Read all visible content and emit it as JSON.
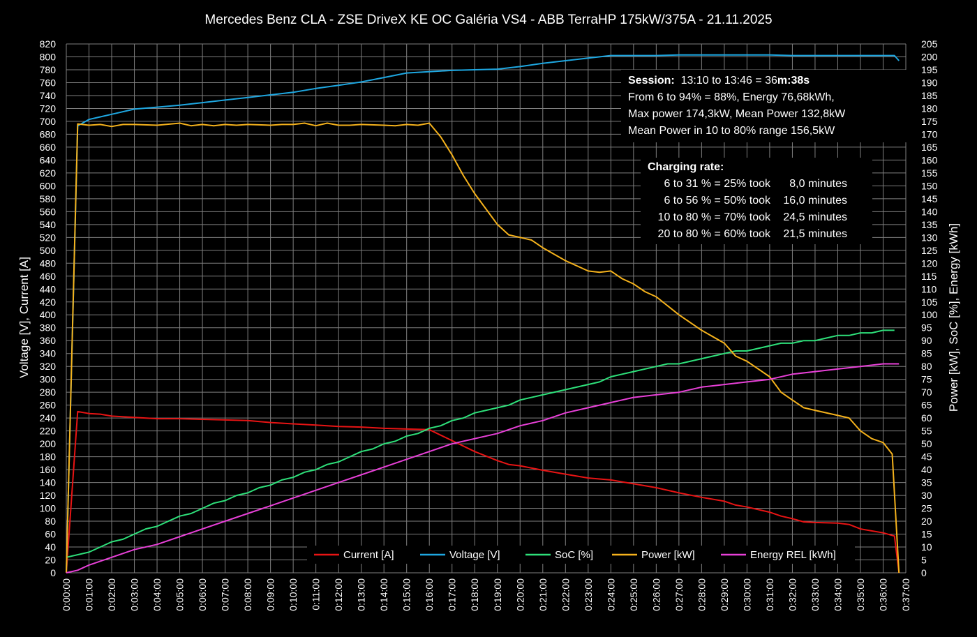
{
  "chart_data": {
    "type": "line",
    "title": "Mercedes Benz CLA - ZSE DriveX KE OC Galéria VS4 - ABB TerraHP 175kW/375A - 21.11.2025",
    "ylabel_left": "Voltage [V], Current [A]",
    "ylabel_right": "Power [kW], SoC [%], Energy [kWh]",
    "xlabel": "",
    "xlim_minutes": [
      0,
      37
    ],
    "ylim_left": [
      0,
      820
    ],
    "ylim_right": [
      0,
      205
    ],
    "grid": true,
    "legend_position": "bottom-center",
    "x_tick_labels": [
      "0:00:00",
      "0:01:00",
      "0:02:00",
      "0:03:00",
      "0:04:00",
      "0:05:00",
      "0:06:00",
      "0:07:00",
      "0:08:00",
      "0:09:00",
      "0:10:00",
      "0:11:00",
      "0:12:00",
      "0:13:00",
      "0:14:00",
      "0:15:00",
      "0:16:00",
      "0:17:00",
      "0:18:00",
      "0:19:00",
      "0:20:00",
      "0:21:00",
      "0:22:00",
      "0:23:00",
      "0:24:00",
      "0:25:00",
      "0:26:00",
      "0:27:00",
      "0:28:00",
      "0:29:00",
      "0:30:00",
      "0:31:00",
      "0:32:00",
      "0:33:00",
      "0:34:00",
      "0:35:00",
      "0:36:00",
      "0:37:00"
    ],
    "y_left_ticks": [
      0,
      20,
      40,
      60,
      80,
      100,
      120,
      140,
      160,
      180,
      200,
      220,
      240,
      260,
      280,
      300,
      320,
      340,
      360,
      380,
      400,
      420,
      440,
      460,
      480,
      500,
      520,
      540,
      560,
      580,
      600,
      620,
      640,
      660,
      680,
      700,
      720,
      740,
      760,
      780,
      800,
      820
    ],
    "y_right_ticks": [
      0,
      5,
      10,
      15,
      20,
      25,
      30,
      35,
      40,
      45,
      50,
      55,
      60,
      65,
      70,
      75,
      80,
      85,
      90,
      95,
      100,
      105,
      110,
      115,
      120,
      125,
      130,
      135,
      140,
      145,
      150,
      155,
      160,
      165,
      170,
      175,
      180,
      185,
      190,
      195,
      200,
      205
    ],
    "series": [
      {
        "name": "Current [A]",
        "axis": "left",
        "color": "#e81414",
        "x": [
          0,
          0.5,
          1,
          1.5,
          2,
          3,
          4,
          5,
          6,
          7,
          8,
          9,
          10,
          11,
          12,
          13,
          14,
          15,
          16,
          17,
          18,
          19,
          19.5,
          20,
          21,
          22,
          23,
          24,
          25,
          26,
          27,
          28,
          29,
          29.5,
          30,
          31,
          31.5,
          32,
          32.5,
          33,
          34,
          34.5,
          35,
          36,
          36.5,
          36.7
        ],
        "values": [
          0,
          250,
          247,
          246,
          243,
          241,
          239,
          239,
          238,
          237,
          236,
          233,
          231,
          229,
          227,
          226,
          224,
          223,
          222,
          205,
          188,
          174,
          168,
          166,
          159,
          153,
          147,
          144,
          138,
          132,
          124,
          117,
          111,
          105,
          102,
          94,
          88,
          84,
          79,
          78,
          77,
          75,
          68,
          62,
          57,
          0
        ]
      },
      {
        "name": "Voltage [V]",
        "axis": "left",
        "color": "#1ea7e1",
        "x": [
          0,
          0.5,
          1,
          1.5,
          2,
          3,
          4,
          5,
          6,
          7,
          8,
          9,
          10,
          11,
          12,
          13,
          14,
          15,
          16,
          17,
          18,
          19,
          20,
          21,
          22,
          23,
          24,
          25,
          26,
          27,
          28,
          29,
          30,
          31,
          32,
          33,
          34,
          35,
          36,
          36.5,
          36.7
        ],
        "values": [
          0,
          693,
          703,
          707,
          711,
          719,
          722,
          725,
          729,
          733,
          737,
          741,
          745,
          751,
          756,
          761,
          768,
          775,
          777,
          779,
          780,
          781,
          785,
          790,
          794,
          798,
          802,
          802,
          802,
          803,
          803,
          803,
          803,
          803,
          802,
          802,
          802,
          802,
          802,
          802,
          794
        ]
      },
      {
        "name": "SoC [%]",
        "axis": "right",
        "color": "#2ee07a",
        "x": [
          0,
          1,
          1.5,
          2,
          2.5,
          3,
          3.5,
          4,
          4.5,
          5,
          5.5,
          6,
          6.5,
          7,
          7.5,
          8,
          8.5,
          9,
          9.5,
          10,
          10.5,
          11,
          11.5,
          12,
          12.5,
          13,
          13.5,
          14,
          14.5,
          15,
          15.5,
          16,
          16.5,
          17,
          17.5,
          18,
          18.5,
          19,
          19.5,
          20,
          21,
          22,
          23,
          23.5,
          24,
          25,
          26,
          26.5,
          27,
          28,
          29,
          29.5,
          30,
          31,
          31.5,
          32,
          32.5,
          33,
          33.5,
          34,
          34.5,
          35,
          35.5,
          36,
          36.5
        ],
        "values": [
          6,
          8,
          10,
          12,
          13,
          15,
          17,
          18,
          20,
          22,
          23,
          25,
          27,
          28,
          30,
          31,
          33,
          34,
          36,
          37,
          39,
          40,
          42,
          43,
          45,
          47,
          48,
          50,
          51,
          53,
          54,
          56,
          57,
          59,
          60,
          62,
          63,
          64,
          65,
          67,
          69,
          71,
          73,
          74,
          76,
          78,
          80,
          81,
          81,
          83,
          85,
          86,
          86,
          88,
          89,
          89,
          90,
          90,
          91,
          92,
          92,
          93,
          93,
          94,
          94
        ]
      },
      {
        "name": "Power [kW]",
        "axis": "right",
        "color": "#f5b21c",
        "x": [
          0,
          0.5,
          1,
          1.5,
          2,
          2.5,
          3,
          4,
          5,
          5.5,
          6,
          6.5,
          7,
          7.5,
          8,
          9,
          9.5,
          10,
          10.5,
          11,
          11.5,
          12,
          12.5,
          13,
          14,
          14.5,
          15,
          15.5,
          16,
          16.5,
          17,
          17.5,
          18,
          18.5,
          19,
          19.5,
          20,
          20.5,
          21,
          22,
          23,
          23.5,
          24,
          24.5,
          25,
          25.5,
          26,
          27,
          28,
          29,
          29.5,
          30,
          31,
          31.5,
          32,
          32.5,
          33,
          34,
          34.5,
          35,
          35.5,
          36,
          36.4,
          36.7
        ],
        "values": [
          0,
          174,
          173.5,
          173.8,
          173,
          173.8,
          173.8,
          173.5,
          174.3,
          173.3,
          173.8,
          173.3,
          173.8,
          173.5,
          173.8,
          173.5,
          173.8,
          173.8,
          174.3,
          173.3,
          174.3,
          173.5,
          173.5,
          173.8,
          173.5,
          173.3,
          173.8,
          173.5,
          174.3,
          169,
          162,
          154,
          147,
          141,
          135,
          131,
          130,
          129,
          126,
          121,
          117,
          116.5,
          117,
          114,
          112,
          109,
          107,
          100,
          94,
          89,
          84,
          82,
          76,
          70,
          67,
          64,
          63,
          61,
          60,
          55,
          52,
          50.5,
          46,
          0
        ]
      },
      {
        "name": "Energy REL [kWh]",
        "axis": "right",
        "color": "#e840d8",
        "x": [
          0,
          0.5,
          1,
          2,
          3,
          4,
          5,
          6,
          7,
          8,
          9,
          10,
          11,
          12,
          13,
          14,
          15,
          16,
          17,
          18,
          19,
          20,
          21,
          22,
          23,
          24,
          25,
          26,
          27,
          28,
          29,
          30,
          31,
          32,
          33,
          34,
          35,
          36,
          36.7
        ],
        "values": [
          0,
          1,
          3,
          6,
          9,
          11,
          14,
          17,
          20,
          23,
          26,
          29,
          32,
          35,
          38,
          41,
          44,
          47,
          50,
          52,
          54,
          57,
          59,
          62,
          64,
          66,
          68,
          69,
          70,
          72,
          73,
          74,
          75,
          77,
          78,
          79,
          80,
          81,
          81
        ]
      }
    ]
  },
  "session": {
    "label": "Session:",
    "time_plain": "13:10 to 13:46 = 36",
    "time_bold": "m:38s",
    "line2": "From 6 to 94% = 88%, Energy 76,68kWh,",
    "line3": "Max power 174,3kW, Mean Power 132,8kW",
    "line4": "Mean Power in 10 to 80% range 156,5kW"
  },
  "charging_rate": {
    "title": "Charging rate:",
    "rows": [
      {
        "range": "6 to 31 % = 25% took",
        "time": "8,0 minutes"
      },
      {
        "range": "6 to 56 % = 50% took",
        "time": "16,0 minutes"
      },
      {
        "range": "10 to 80 % = 70% took",
        "time": "24,5 minutes"
      },
      {
        "range": "20 to 80 % = 60% took",
        "time": "21,5 minutes"
      }
    ]
  }
}
